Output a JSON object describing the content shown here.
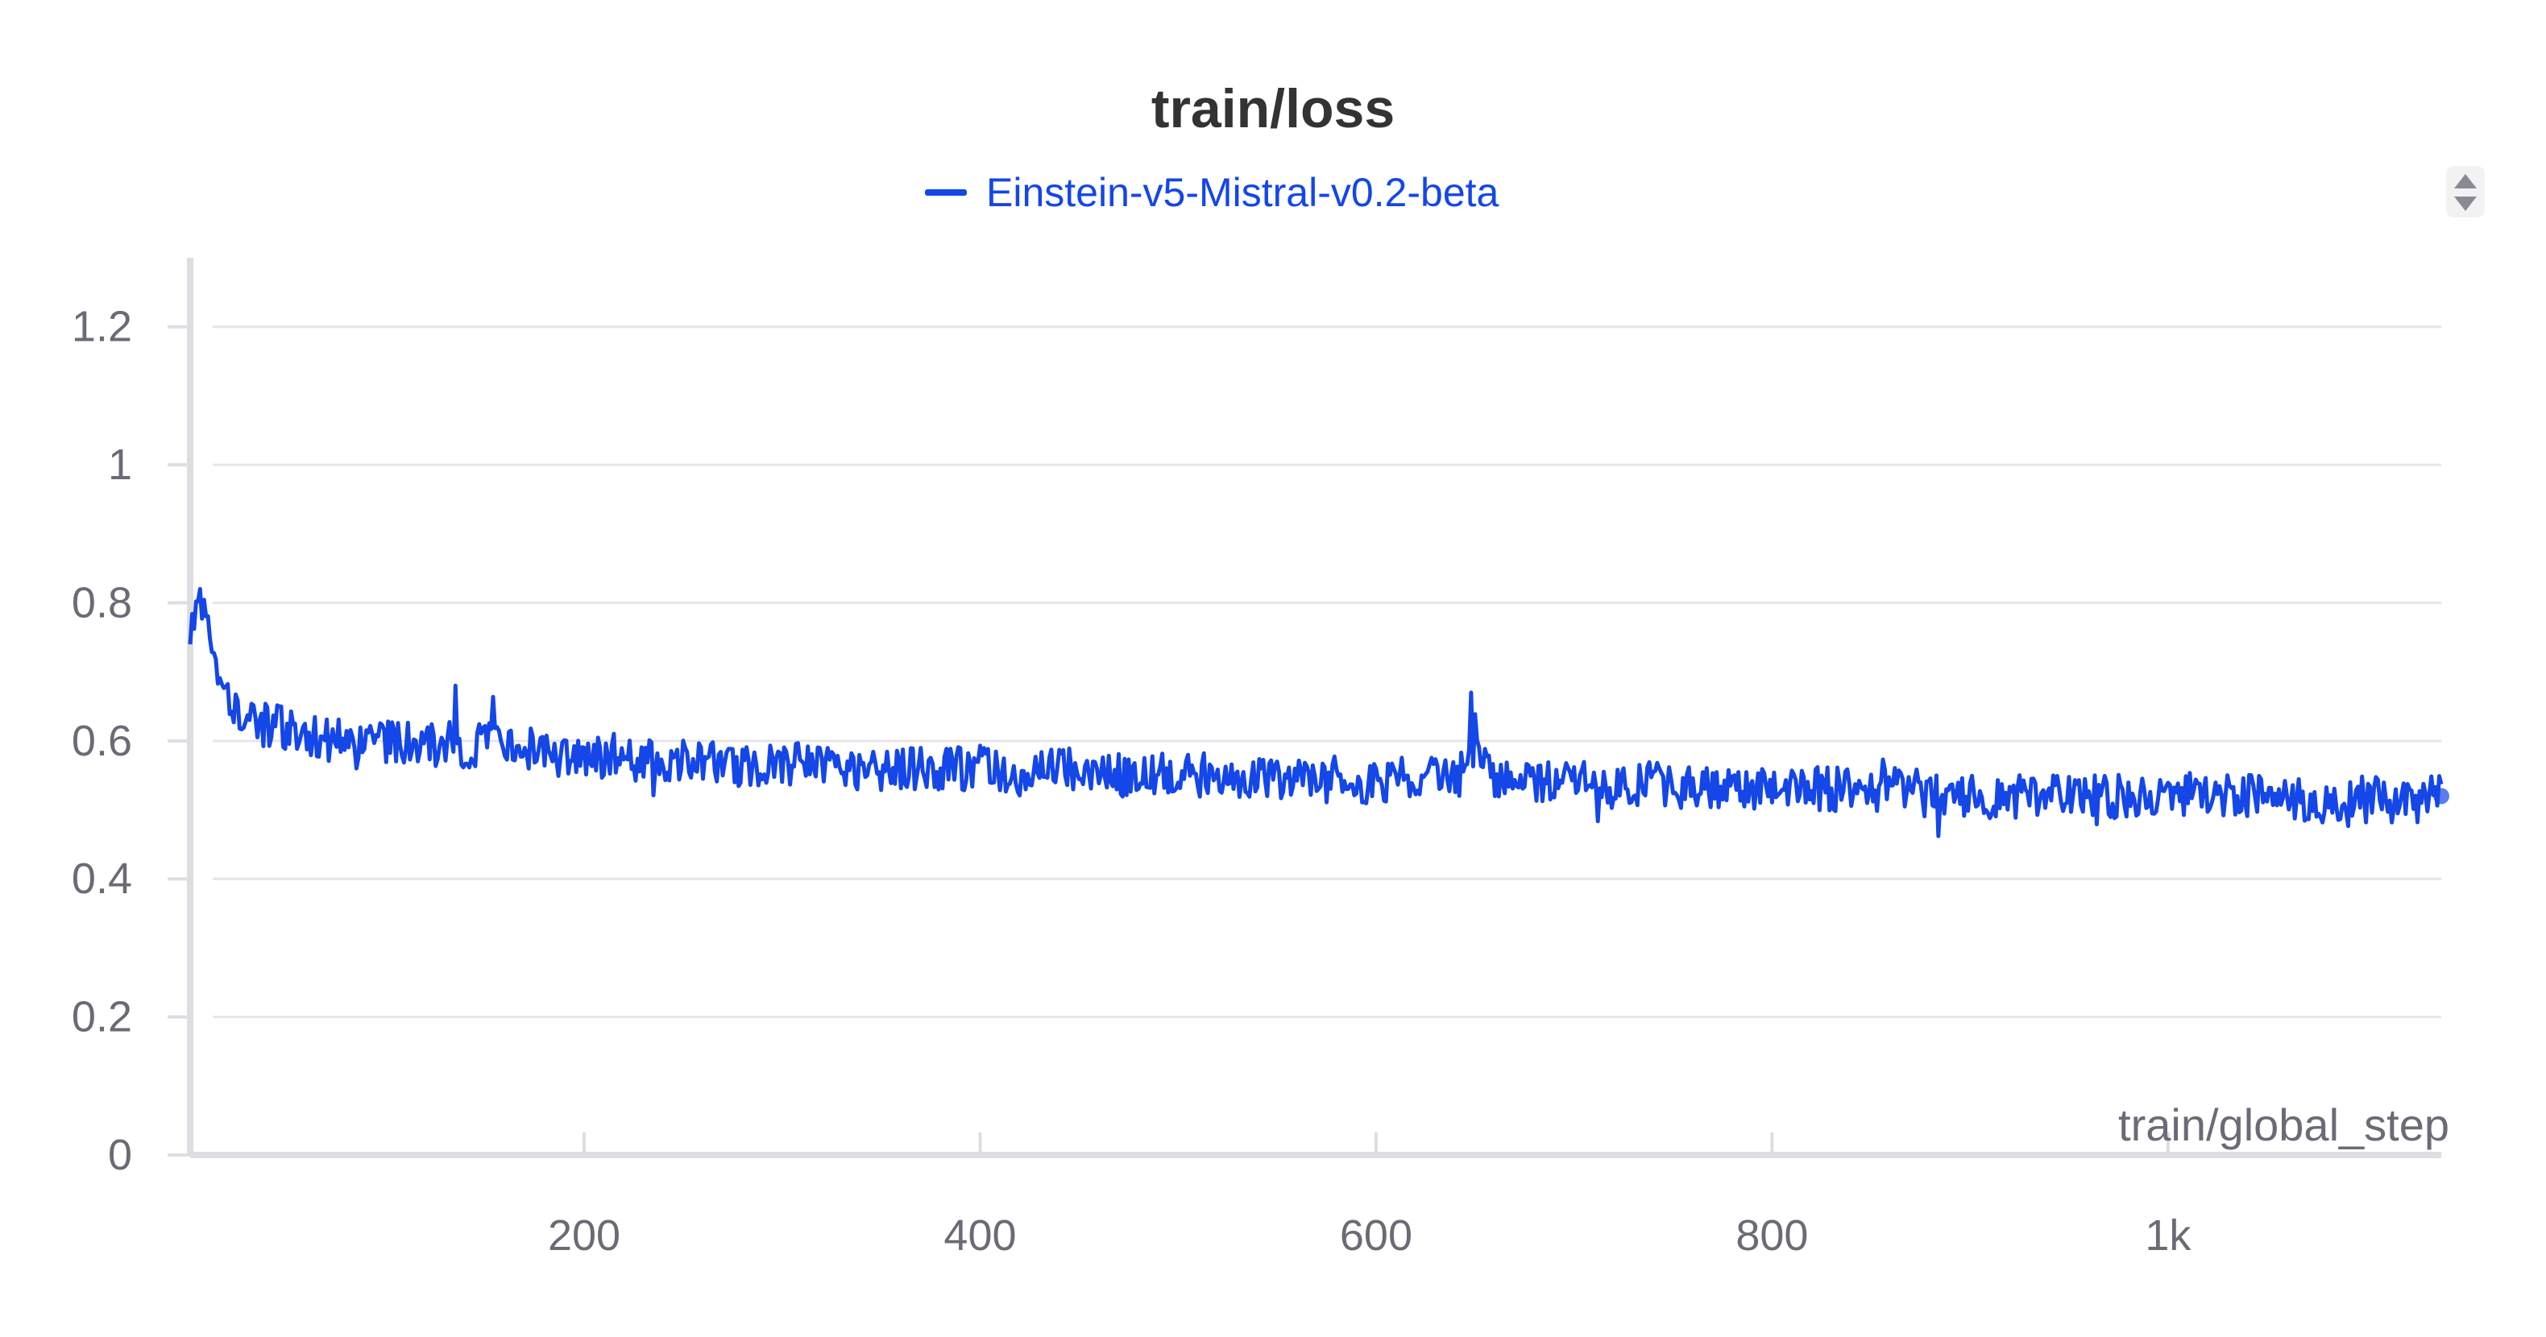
{
  "panel": {
    "sort_icon": "sort-arrows-icon",
    "line_color": "#1446e8",
    "grid_color": "#e6e6ea",
    "axis_color": "#dedee2",
    "text_color": "#6b6b76"
  },
  "chart_data": {
    "type": "line",
    "title": "train/loss",
    "xlabel": "train/global_step",
    "ylabel": "",
    "xlim": [
      1,
      1138
    ],
    "ylim": [
      0,
      1.3
    ],
    "x_ticks": [
      200,
      400,
      600,
      800,
      1000
    ],
    "x_tick_labels": [
      "200",
      "400",
      "600",
      "800",
      "1k"
    ],
    "y_ticks": [
      0,
      0.2,
      0.4,
      0.6,
      0.8,
      1,
      1.2
    ],
    "y_tick_labels": [
      "0",
      "0.2",
      "0.4",
      "0.6",
      "0.8",
      "1",
      "1.2"
    ],
    "grid": true,
    "legend_position": "top",
    "series": [
      {
        "name": "Einstein-v5-Mistral-v0.2-beta",
        "color": "#1446e8",
        "x": [
          1,
          5,
          10,
          15,
          20,
          30,
          40,
          50,
          60,
          70,
          80,
          90,
          100,
          110,
          120,
          130,
          140,
          150,
          160,
          170,
          180,
          190,
          200,
          220,
          240,
          260,
          280,
          300,
          320,
          340,
          360,
          380,
          400,
          420,
          440,
          460,
          480,
          500,
          520,
          540,
          560,
          580,
          600,
          620,
          640,
          650,
          660,
          680,
          700,
          720,
          740,
          760,
          780,
          800,
          820,
          840,
          860,
          880,
          900,
          920,
          940,
          960,
          980,
          1000,
          1020,
          1040,
          1060,
          1080,
          1100,
          1120,
          1138
        ],
        "y": [
          0.76,
          0.8,
          0.78,
          0.7,
          0.66,
          0.64,
          0.62,
          0.62,
          0.61,
          0.6,
          0.61,
          0.6,
          0.6,
          0.6,
          0.59,
          0.6,
          0.58,
          0.6,
          0.58,
          0.59,
          0.58,
          0.58,
          0.58,
          0.57,
          0.57,
          0.57,
          0.56,
          0.57,
          0.56,
          0.56,
          0.56,
          0.56,
          0.56,
          0.55,
          0.56,
          0.55,
          0.55,
          0.55,
          0.55,
          0.55,
          0.54,
          0.54,
          0.54,
          0.55,
          0.54,
          0.6,
          0.54,
          0.54,
          0.54,
          0.53,
          0.54,
          0.53,
          0.53,
          0.53,
          0.53,
          0.53,
          0.53,
          0.53,
          0.52,
          0.52,
          0.52,
          0.52,
          0.52,
          0.52,
          0.52,
          0.52,
          0.52,
          0.51,
          0.52,
          0.51,
          0.52
        ]
      }
    ]
  }
}
